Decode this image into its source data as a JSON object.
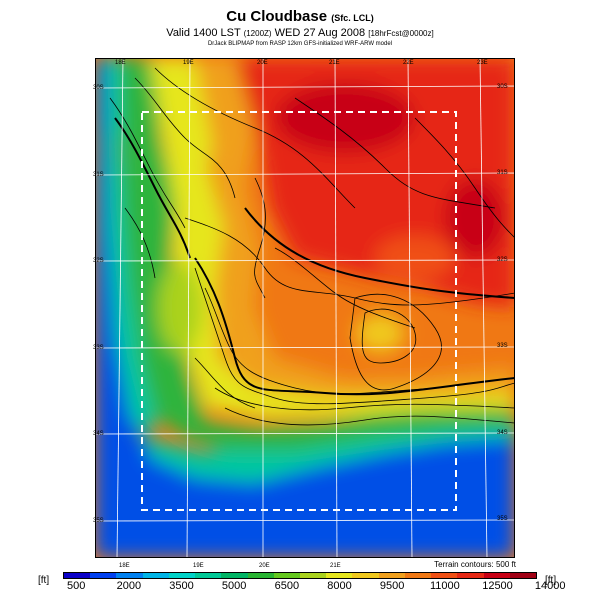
{
  "header": {
    "title": "Cu Cloudbase",
    "title_suffix": "(Sfc. LCL)",
    "subtitle_main": "Valid 1400 LST",
    "subtitle_mid": "(1200Z)",
    "subtitle_date": "WED 27 Aug 2008",
    "subtitle_suffix": "[18hrFcst@0000z]",
    "credit": "DrJack BLIPMAP from RASP 12km GFS-initialized WRF-ARW model"
  },
  "axes": {
    "top_lon": [
      "18E",
      "19E",
      "20E",
      "21E",
      "22E",
      "23E"
    ],
    "bottom_lon": [
      "18E",
      "19E",
      "20E",
      "21E"
    ],
    "left_lat": [
      "30S",
      "31S",
      "32S",
      "33S",
      "34S",
      "35S"
    ],
    "right_lat": [
      "30S",
      "31S",
      "32S",
      "33S",
      "34S",
      "35S"
    ]
  },
  "terrain_note": "Terrain contours: 500 ft",
  "colorbar": {
    "unit_left": "[ft]",
    "unit_right": "[ft]",
    "tick_labels": [
      "500",
      "2000",
      "3500",
      "5000",
      "6500",
      "8000",
      "9500",
      "11000",
      "12500",
      "14000"
    ],
    "colors": [
      "#0a00c8",
      "#0040f0",
      "#0080f0",
      "#00b4e6",
      "#00d2c8",
      "#00c896",
      "#00b464",
      "#28b432",
      "#64c81e",
      "#aad21e",
      "#e6e61e",
      "#f0c81e",
      "#f0a01e",
      "#f07814",
      "#f05014",
      "#e62814",
      "#c80014",
      "#a00014"
    ]
  },
  "legend_colors": {
    "ocean": "#0050e6",
    "coast": "#00c8a0",
    "low": "#2db43c",
    "mid": "#e6e61e",
    "high": "#f07814",
    "peak": "#e62814"
  }
}
